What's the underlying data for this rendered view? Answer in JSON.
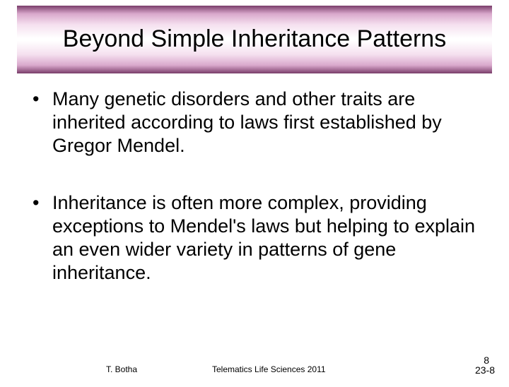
{
  "title": "Beyond Simple Inheritance Patterns",
  "bullets": [
    "Many genetic disorders and other traits are inherited according to laws first established by Gregor Mendel.",
    "Inheritance is often more complex, providing exceptions to Mendel's laws but helping to explain an even wider variety in patterns of gene inheritance."
  ],
  "footer": {
    "author": "T. Botha",
    "course": "Telematics Life Sciences 2011",
    "page_top": "8",
    "page_bottom": "23-8"
  },
  "styling": {
    "slide_width": 720,
    "slide_height": 540,
    "background_color": "#ffffff",
    "title_fontsize": 34,
    "title_color": "#000000",
    "title_gradient_stops": [
      "#7a3d6a",
      "#d9a8cc",
      "#f5e0ef",
      "#ffffff",
      "#ffffff",
      "#f5e0ef",
      "#d9a8cc",
      "#7a3d6a"
    ],
    "bullet_fontsize": 27,
    "bullet_color": "#000000",
    "footer_fontsize": 12,
    "footer_page_fontsize": 14
  }
}
